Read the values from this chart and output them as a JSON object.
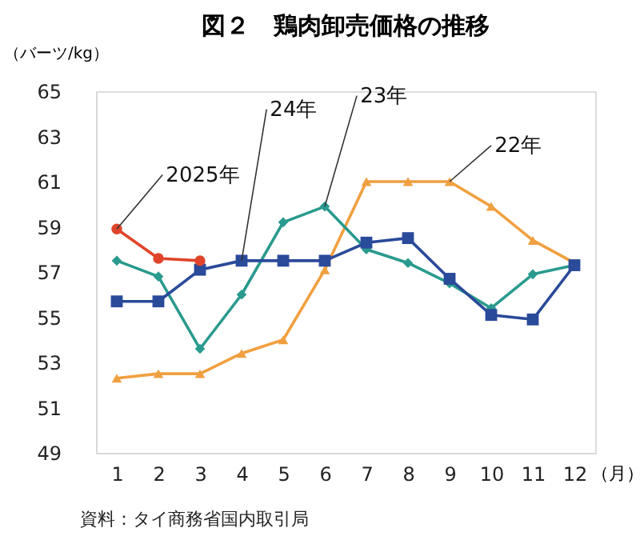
{
  "chart_data": {
    "type": "line",
    "title": "図２　鶏肉卸売価格の推移",
    "ylabel": "（バーツ/kg）",
    "xlabel": "（月）",
    "x": [
      1,
      2,
      3,
      4,
      5,
      6,
      7,
      8,
      9,
      10,
      11,
      12
    ],
    "xlim": [
      0.5,
      12.5
    ],
    "xticks": [
      1,
      2,
      3,
      4,
      5,
      6,
      7,
      8,
      9,
      10,
      11,
      12
    ],
    "ylim": [
      49,
      65
    ],
    "yticks": [
      49,
      51,
      53,
      55,
      57,
      59,
      61,
      63,
      65
    ],
    "grid": false,
    "legend": false,
    "series": [
      {
        "color": "#f0a040",
        "marker": "triangle",
        "values": [
          52.3,
          52.5,
          52.5,
          53.4,
          54.0,
          57.1,
          61.0,
          61.0,
          61.0,
          59.9,
          58.4,
          57.4
        ]
      },
      {
        "color": "#2a9a8e",
        "marker": "diamond",
        "values": [
          57.5,
          56.8,
          53.6,
          56.0,
          59.2,
          59.9,
          58.0,
          57.4,
          56.5,
          55.4,
          56.9,
          57.3
        ]
      },
      {
        "color": "#2a4a9a",
        "marker": "square",
        "values": [
          55.7,
          55.7,
          57.1,
          57.5,
          57.5,
          57.5,
          58.3,
          58.5,
          56.7,
          55.1,
          54.9,
          57.3
        ]
      },
      {
        "color": "#e0452b",
        "marker": "circle",
        "values": [
          58.9,
          57.6,
          57.5,
          null,
          null,
          null,
          null,
          null,
          null,
          null,
          null,
          null
        ]
      }
    ],
    "annotations": [
      {
        "text": "2025年",
        "x": 1,
        "y": 58.9
      },
      {
        "text": "24年",
        "x": 4,
        "y": 57.5
      },
      {
        "text": "23年",
        "x": 6,
        "y": 59.9
      },
      {
        "text": "22年",
        "x": 9,
        "y": 61.0
      },
      "資料：タイ商務省国内取引局"
    ]
  }
}
